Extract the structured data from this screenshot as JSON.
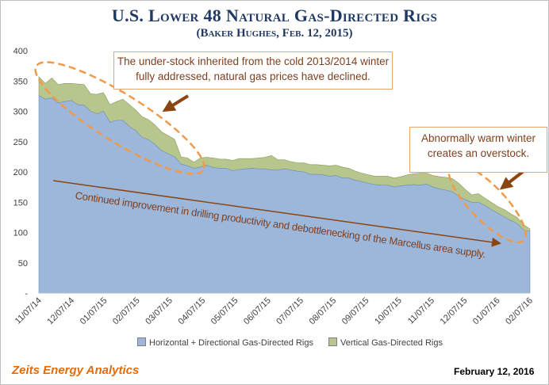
{
  "header": {
    "title": "U.S. Lower 48 Natural Gas-Directed Rigs",
    "subtitle": "(Baker Hughes, Feb. 12, 2015)"
  },
  "footer": {
    "brand": "Zeits Energy Analytics",
    "date": "February 12, 2016"
  },
  "annotations": {
    "callout_top": "The under-stock inherited from the cold 2013/2014 winter fully addressed, natural gas prices have declined.",
    "callout_right": "Abnormally warm winter creates an overstock.",
    "trend_label": "Continued improvement in drilling productivity and debottlenecking of the Marcellus area supply."
  },
  "colors": {
    "horizontal": "#9db7da",
    "vertical": "#b7c68d",
    "accent": "#e3a76f",
    "arrow": "#8b4513"
  },
  "chart_data": {
    "type": "area",
    "stacked": true,
    "xlabel": "",
    "ylabel": "",
    "ylim": [
      0,
      400
    ],
    "yticks": [
      "-",
      "50",
      "100",
      "150",
      "200",
      "250",
      "300",
      "350",
      "400"
    ],
    "x_ticks": [
      "11/07/14",
      "12/07/14",
      "01/07/15",
      "02/07/15",
      "03/07/15",
      "04/07/15",
      "05/07/15",
      "06/07/15",
      "07/07/15",
      "08/07/15",
      "09/07/15",
      "10/07/15",
      "11/07/15",
      "12/07/15",
      "01/07/16",
      "02/07/16"
    ],
    "legend_position": "bottom",
    "grid": false,
    "series": [
      {
        "name": "Horizontal + Directional Gas-Directed Rigs",
        "values": [
          326,
          320,
          322,
          314,
          316,
          318,
          311,
          310,
          300,
          296,
          300,
          282,
          285,
          285,
          275,
          268,
          257,
          253,
          245,
          235,
          230,
          225,
          213,
          210,
          206,
          208,
          211,
          207,
          206,
          206,
          202,
          204,
          205,
          206,
          205,
          205,
          203,
          203,
          205,
          203,
          201,
          200,
          196,
          196,
          195,
          193,
          194,
          190,
          190,
          186,
          184,
          181,
          179,
          178,
          178,
          175,
          177,
          178,
          179,
          178,
          180,
          175,
          172,
          170,
          167,
          160,
          154,
          150,
          150,
          145,
          138,
          132,
          126,
          120,
          115,
          104,
          102
        ]
      },
      {
        "name": "Vertical Gas-Directed Rigs",
        "values": [
          31,
          26,
          33,
          30,
          30,
          28,
          34,
          34,
          29,
          32,
          31,
          29,
          31,
          35,
          36,
          34,
          34,
          33,
          32,
          31,
          30,
          29,
          12,
          13,
          10,
          15,
          13,
          16,
          15,
          15,
          17,
          18,
          17,
          16,
          18,
          19,
          24,
          17,
          15,
          14,
          14,
          15,
          16,
          16,
          16,
          17,
          17,
          18,
          16,
          15,
          14,
          14,
          14,
          15,
          15,
          15,
          15,
          17,
          18,
          20,
          18,
          19,
          20,
          21,
          22,
          21,
          17,
          12,
          14,
          12,
          12,
          11,
          12,
          11,
          10,
          9,
          4
        ]
      }
    ]
  }
}
